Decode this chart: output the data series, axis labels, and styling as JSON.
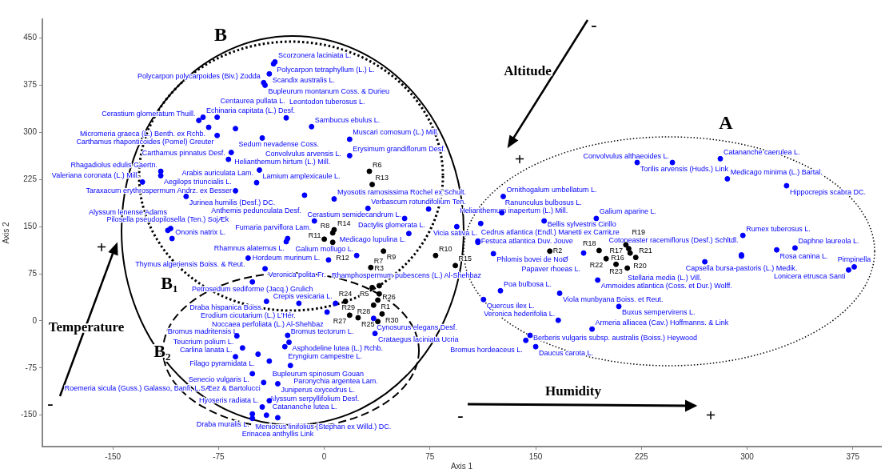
{
  "chart_data": {
    "type": "scatter",
    "xlabel": "Axis 1",
    "ylabel": "Axis 2",
    "xlim": [
      -200,
      395
    ],
    "ylim": [
      -200,
      480
    ],
    "xticks": [
      -150,
      -75,
      0,
      75,
      150,
      225,
      300,
      375
    ],
    "yticks": [
      -150,
      -75,
      0,
      75,
      150,
      225,
      300,
      375,
      450
    ],
    "marker": "circle",
    "legend": false,
    "series": [
      {
        "color": "#0000ff",
        "x": [
          -36,
          -35,
          -39,
          -42,
          -43,
          -86,
          -89,
          -82,
          -76,
          -76,
          -63,
          -44,
          -27,
          -9,
          18,
          18,
          -66,
          -68,
          -129,
          -116,
          -116,
          -46,
          -48,
          -98,
          -63,
          -14,
          7,
          31,
          74,
          -7,
          57,
          60,
          -111,
          -109,
          -108,
          -26,
          -27,
          -54,
          -42,
          -51,
          -41,
          -18,
          2,
          8,
          35,
          36,
          -25,
          -28,
          -47,
          -62,
          -26,
          -58,
          -63,
          -39,
          -24,
          -51,
          -43,
          -33,
          -39,
          -44,
          -51,
          -51,
          -33,
          -41,
          23,
          3,
          109,
          120,
          109,
          94,
          111,
          156,
          193,
          126,
          127,
          222,
          247,
          281,
          286,
          328,
          297,
          321,
          334,
          296,
          296,
          372,
          376,
          270,
          184,
          194,
          125,
          113,
          167,
          209,
          166,
          190,
          146,
          143,
          150
        ],
        "values": [
          409,
          412,
          393,
          375,
          379,
          324,
          319,
          308,
          295,
          324,
          306,
          291,
          323,
          309,
          289,
          263,
          268,
          257,
          221,
          238,
          231,
          240,
          220,
          198,
          207,
          200,
          194,
          179,
          178,
          159,
          163,
          139,
          144,
          147,
          131,
          131,
          126,
          100,
          83,
          62,
          31,
          28,
          14,
          28,
          4,
          -20,
          -34,
          -41,
          -53,
          -24,
          -23,
          -43,
          -57,
          -64,
          -71,
          -84,
          -98,
          -100,
          -127,
          -137,
          -148,
          -155,
          -154,
          -150,
          104,
          97,
          125,
          107,
          127,
          150,
          155,
          159,
          163,
          172,
          198,
          252,
          252,
          258,
          226,
          215,
          136,
          113,
          116,
          105,
          103,
          81,
          86,
          94,
          108,
          65,
          48,
          34,
          44,
          23,
          1,
          -13,
          -23,
          -31,
          -41
        ]
      },
      {
        "color": "#000000",
        "x": [
          32,
          34,
          7,
          6,
          0,
          6,
          42,
          33,
          79,
          93,
          39,
          34,
          39,
          38,
          15,
          18,
          35,
          24,
          41,
          38,
          160,
          195,
          214,
          216,
          217,
          221,
          200,
          207,
          215
        ],
        "values": [
          238,
          217,
          145,
          140,
          130,
          125,
          111,
          85,
          104,
          88,
          56,
          53,
          43,
          33,
          31,
          9,
          25,
          5,
          11,
          -1,
          111,
          112,
          121,
          115,
          108,
          101,
          99,
          90,
          84
        ]
      }
    ],
    "annotations": [
      {
        "text": "Polycarpon tetraphyllum (L.) L.",
        "x": -36,
        "y": 409
      },
      {
        "text": "Scorzonera laciniata L.",
        "x": -35,
        "y": 412
      },
      {
        "text": "Scandix australis L.",
        "x": -39,
        "y": 393
      },
      {
        "text": "Bupleurum montanum Coss. & Durieu",
        "x": -42,
        "y": 375
      },
      {
        "text": "Polycarpon polycarpoides (Biv.) Zodda",
        "x": -43,
        "y": 379
      },
      {
        "text": "Echinaria capitata (L.) Desf.",
        "x": -86,
        "y": 324
      },
      {
        "text": "Cerastium glomeratum Thuill.",
        "x": -89,
        "y": 319
      },
      {
        "text": "Micromeria graeca (L.) Benth. ex Rchb.",
        "x": -82,
        "y": 308
      },
      {
        "text": "Carthamus rhaponticoides (Pomel) Greuter",
        "x": -76,
        "y": 295
      },
      {
        "text": "Centaurea pullata L.",
        "x": -76,
        "y": 324
      },
      {
        "text": "Sedum nevadense Coss.",
        "x": -63,
        "y": 306
      },
      {
        "text": "Convolvulus arvensis L.",
        "x": -44,
        "y": 291
      },
      {
        "text": "Leontodon tuberosus L.",
        "x": -27,
        "y": 323
      },
      {
        "text": "Sambucus ebulus L.",
        "x": -9,
        "y": 309
      },
      {
        "text": "Muscari comosum (L.) Mill.",
        "x": 18,
        "y": 289
      },
      {
        "text": "Erysimum grandiflorum Desf.",
        "x": 18,
        "y": 263
      },
      {
        "text": "Helianthemum hirtum (L.) Mill.",
        "x": -66,
        "y": 268
      },
      {
        "text": "Carthamus pinnatus Desf.",
        "x": -68,
        "y": 257
      },
      {
        "text": "Valeriana coronata (L.) Mill.",
        "x": -129,
        "y": 221
      },
      {
        "text": "Rhagadiolus edulis Gaertn.",
        "x": -116,
        "y": 238
      },
      {
        "text": "Aegilops triuncialis L.",
        "x": -116,
        "y": 231
      },
      {
        "text": "Lamium amplexicaule L.",
        "x": -46,
        "y": 240
      },
      {
        "text": "Arabis auriculata Lam.",
        "x": -48,
        "y": 220
      },
      {
        "text": "Jurinea humilis (Desf.) DC.",
        "x": -98,
        "y": 198
      },
      {
        "text": "Taraxacum erythrospermum Andrz. ex Besser",
        "x": -63,
        "y": 207
      },
      {
        "text": "Anthemis pedunculata Desf.",
        "x": -14,
        "y": 200
      },
      {
        "text": "Myosotis ramosissima Rochel ex Schult.",
        "x": 7,
        "y": 194
      },
      {
        "text": "Verbascum rotundifolium Ten.",
        "x": 31,
        "y": 179
      },
      {
        "text": "Dactylis glomerata L.",
        "x": 74,
        "y": 178
      },
      {
        "text": "Fumaria parviflora Lam.",
        "x": -7,
        "y": 159
      },
      {
        "text": "Cerastium semidecandrum L.",
        "x": 57,
        "y": 163
      },
      {
        "text": "Medicago lupulina L.",
        "x": 60,
        "y": 139
      },
      {
        "text": "Pilosella pseudopilosella (Ten.) SojÆk",
        "x": -111,
        "y": 144
      },
      {
        "text": "Alyssum lenense Adams",
        "x": -109,
        "y": 147
      },
      {
        "text": "Ononis natrix L.",
        "x": -108,
        "y": 131
      },
      {
        "text": "Rhamnus alaternus L.",
        "x": -26,
        "y": 131
      },
      {
        "text": "Hordeum murinum L.",
        "x": -27,
        "y": 126
      },
      {
        "text": "Thymus algeriensis Boiss. & Reut.",
        "x": -54,
        "y": 100
      },
      {
        "text": "Veronica polita Fr.",
        "x": -42,
        "y": 83
      },
      {
        "text": "Petrosedum sediforme (Jacq.) Grulich",
        "x": -51,
        "y": 62
      },
      {
        "text": "Draba hispanica Boiss.",
        "x": -41,
        "y": 31
      },
      {
        "text": "Erodium cicutarium (L.) L'Hér.",
        "x": -18,
        "y": 28
      },
      {
        "text": "Noccaea perfoliata (L.) Al-Shehbaz",
        "x": 2,
        "y": 14
      },
      {
        "text": "Crepis vesicaria L.",
        "x": 8,
        "y": 28
      },
      {
        "text": "Cynosurus elegans Desf.",
        "x": 35,
        "y": 4
      },
      {
        "text": "Crataegus laciniata Ucria",
        "x": 36,
        "y": -20
      },
      {
        "text": "Asphodeline lutea (L.) Rchb.",
        "x": -25,
        "y": -34
      },
      {
        "text": "Eryngium campestre L.",
        "x": -28,
        "y": -41
      },
      {
        "text": "Filago pyramidata L.",
        "x": -47,
        "y": -53
      },
      {
        "text": "Teucrium polium L.",
        "x": -62,
        "y": -24
      },
      {
        "text": "Bromus tectorum L.",
        "x": -26,
        "y": -23
      },
      {
        "text": "Bromus madritensis L.",
        "x": -58,
        "y": -43
      },
      {
        "text": "Carlina lanata L.",
        "x": -63,
        "y": -57
      },
      {
        "text": "Bupleurum spinosum Gouan",
        "x": -39,
        "y": -64
      },
      {
        "text": "Paronychia argentea Lam.",
        "x": -24,
        "y": -71
      },
      {
        "text": "Senecio vulgaris L.",
        "x": -51,
        "y": -84
      },
      {
        "text": "Roemeria sicula (Guss.) Galasso, Banfi, L.SÆez & Bartolucci",
        "x": -43,
        "y": -98
      },
      {
        "text": "Juniperus oxycedrus L.",
        "x": -33,
        "y": -100
      },
      {
        "text": "Catananche lutea L.",
        "x": -39,
        "y": -127
      },
      {
        "text": "Hyoseris radiata L.",
        "x": -44,
        "y": -137
      },
      {
        "text": "Meniocus linifolius (Stephan ex Willd.) DC.",
        "x": -51,
        "y": -148
      },
      {
        "text": "Draba muralis L.",
        "x": -51,
        "y": -155
      },
      {
        "text": "Erinacea anthyllis Link",
        "x": -33,
        "y": -154
      },
      {
        "text": "Alyssum serpyllifolium Desf.",
        "x": -41,
        "y": -150
      },
      {
        "text": "Galium mollugo L.",
        "x": 23,
        "y": 104
      },
      {
        "text": "Rhamphospermum pubescens (L.) Al-Shehbaz",
        "x": 3,
        "y": 97
      },
      {
        "text": "Cedrus atlantica (Endl.) Manetti ex CarriŁre",
        "x": 109,
        "y": 125
      },
      {
        "text": "Phlomis bovei de NoØ",
        "x": 120,
        "y": 107
      },
      {
        "text": "Festuca atlantica Duv. Jouve",
        "x": 109,
        "y": 127
      },
      {
        "text": "Helianthemum inapertum (L.) Mill.",
        "x": 94,
        "y": 150
      },
      {
        "text": "Vicia sativa L.",
        "x": 111,
        "y": 155
      },
      {
        "text": "Bellis sylvestris Cirillo",
        "x": 156,
        "y": 159
      },
      {
        "text": "Galium aparine L.",
        "x": 193,
        "y": 163
      },
      {
        "text": "Ranunculus bulbosus L.",
        "x": 126,
        "y": 172
      },
      {
        "text": "Ornithogalum umbellatum L.",
        "x": 127,
        "y": 198
      },
      {
        "text": "Torilis arvensis (Huds.) Link",
        "x": 222,
        "y": 252
      },
      {
        "text": "Convolvulus althaeoides L.",
        "x": 247,
        "y": 252
      },
      {
        "text": "Catananche caerulea L.",
        "x": 281,
        "y": 258
      },
      {
        "text": "Medicago minima (L.) Bartal.",
        "x": 286,
        "y": 226
      },
      {
        "text": "Hippocrepis scabra DC.",
        "x": 328,
        "y": 215
      },
      {
        "text": "Rumex tuberosus L.",
        "x": 297,
        "y": 136
      },
      {
        "text": "Rosa canina L.",
        "x": 321,
        "y": 113
      },
      {
        "text": "Daphne laureola L.",
        "x": 334,
        "y": 116
      },
      {
        "text": "Capsella bursa-pastoris (L.) Medik.",
        "x": 296,
        "y": 105
      },
      {
        "text": "Cotoneaster racemiflorus (Desf.) Schltdl.",
        "x": 296,
        "y": 103
      },
      {
        "text": "Lonicera etrusca Santi",
        "x": 372,
        "y": 81
      },
      {
        "text": "Pimpinella",
        "x": 376,
        "y": 86
      },
      {
        "text": "Stellaria media (L.) Vill.",
        "x": 270,
        "y": 94
      },
      {
        "text": "Papaver rhoeas L.",
        "x": 184,
        "y": 108
      },
      {
        "text": "Ammoides atlantica (Coss. et Dur.) Wolff.",
        "x": 194,
        "y": 65
      },
      {
        "text": "Poa bulbosa L.",
        "x": 125,
        "y": 48
      },
      {
        "text": "Quercus ilex L.",
        "x": 113,
        "y": 34
      },
      {
        "text": "Viola munbyana Boiss. et Reut.",
        "x": 167,
        "y": 44
      },
      {
        "text": "Buxus sempervirens L.",
        "x": 209,
        "y": 23
      },
      {
        "text": "Veronica hederifolia L.",
        "x": 166,
        "y": 1
      },
      {
        "text": "Armeria alliacea (Cav.) Hoffmanns. & Link",
        "x": 190,
        "y": -13
      },
      {
        "text": "Berberis vulgaris subsp. australis (Boiss.) Heywood",
        "x": 146,
        "y": -23
      },
      {
        "text": "Bromus hordeaceus L.",
        "x": 143,
        "y": -31
      },
      {
        "text": "Daucus carota L.",
        "x": 150,
        "y": -41
      },
      {
        "text": "R6",
        "x": 32,
        "y": 238
      },
      {
        "text": "R13",
        "x": 34,
        "y": 217
      },
      {
        "text": "R14",
        "x": 7,
        "y": 145
      },
      {
        "text": "R8",
        "x": 6,
        "y": 140
      },
      {
        "text": "R11",
        "x": 0,
        "y": 130
      },
      {
        "text": "R12",
        "x": 6,
        "y": 125
      },
      {
        "text": "R9",
        "x": 42,
        "y": 111
      },
      {
        "text": "R7",
        "x": 33,
        "y": 85
      },
      {
        "text": "R10",
        "x": 79,
        "y": 104
      },
      {
        "text": "R15",
        "x": 93,
        "y": 88
      },
      {
        "text": "R3",
        "x": 39,
        "y": 56
      },
      {
        "text": "R5",
        "x": 34,
        "y": 53
      },
      {
        "text": "R26",
        "x": 39,
        "y": 43
      },
      {
        "text": "R1",
        "x": 38,
        "y": 33
      },
      {
        "text": "R24",
        "x": 15,
        "y": 31
      },
      {
        "text": "R27",
        "x": 18,
        "y": 9
      },
      {
        "text": "R28",
        "x": 35,
        "y": 25
      },
      {
        "text": "R29",
        "x": 24,
        "y": 5
      },
      {
        "text": "R30",
        "x": 41,
        "y": 11
      },
      {
        "text": "R25",
        "x": 38,
        "y": -1
      },
      {
        "text": "R2",
        "x": 160,
        "y": 111
      },
      {
        "text": "R18",
        "x": 195,
        "y": 112
      },
      {
        "text": "R17",
        "x": 214,
        "y": 121
      },
      {
        "text": "R19",
        "x": 216,
        "y": 115
      },
      {
        "text": "R20",
        "x": 217,
        "y": 108
      },
      {
        "text": "R21",
        "x": 221,
        "y": 101
      },
      {
        "text": "R22",
        "x": 200,
        "y": 99
      },
      {
        "text": "R23",
        "x": 207,
        "y": 90
      },
      {
        "text": "R16",
        "x": 215,
        "y": 84
      },
      "A",
      "B",
      "B₁",
      "B₂",
      "Altitude",
      "Temperature",
      "Humidity",
      "+",
      "-",
      "+",
      "-",
      "-",
      "+"
    ]
  }
}
